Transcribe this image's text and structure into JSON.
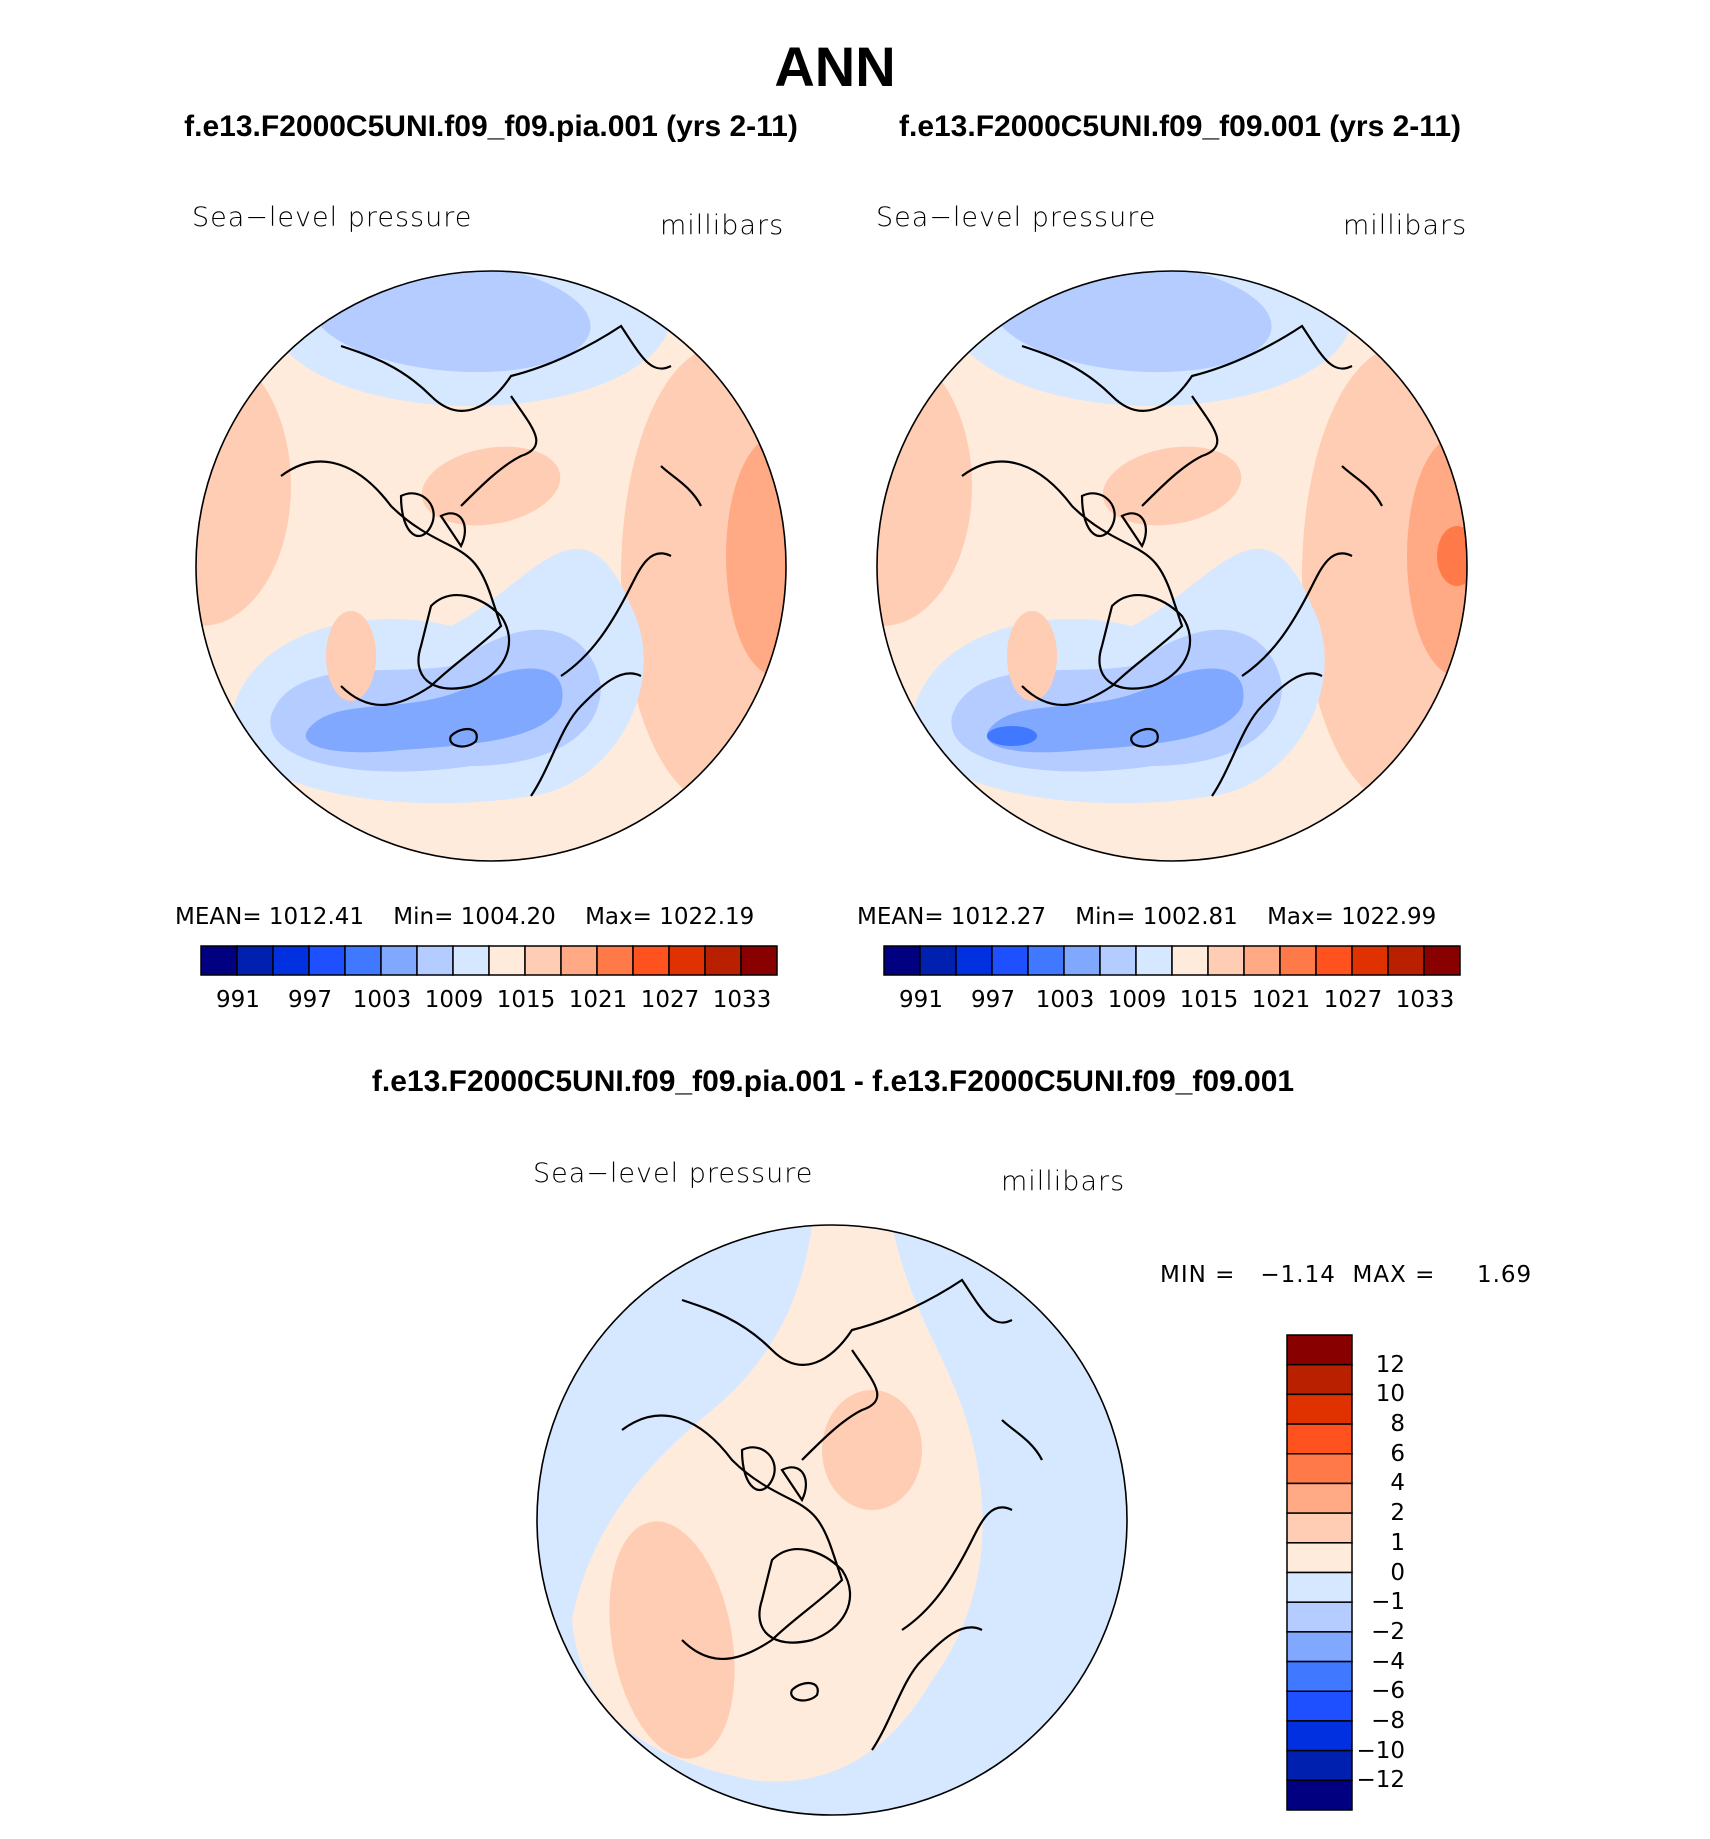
{
  "title": "ANN",
  "colors": [
    "#000080",
    "#0020b0",
    "#0030e0",
    "#1e50ff",
    "#4078ff",
    "#80a8ff",
    "#b4ccff",
    "#d6e8ff",
    "#ffebdb",
    "#ffccb4",
    "#ffaa84",
    "#ff7a48",
    "#ff521e",
    "#e03200",
    "#b82000",
    "#880000"
  ],
  "chart_data": [
    {
      "type": "heatmap",
      "subtitle": "f.e13.F2000C5UNI.f09_f09.pia.001 (yrs 2-11)",
      "variable": "Sea−level pressure",
      "units": "millibars",
      "stats": {
        "mean_label": "MEAN=",
        "mean": "1012.41",
        "min_label": "Min=",
        "min": "1004.20",
        "max_label": "Max=",
        "max": "1022.19"
      },
      "levels": [
        "991",
        "997",
        "1003",
        "1009",
        "1015",
        "1021",
        "1027",
        "1033"
      ],
      "projection": "north polar stereographic"
    },
    {
      "type": "heatmap",
      "subtitle": "f.e13.F2000C5UNI.f09_f09.001 (yrs 2-11)",
      "variable": "Sea−level pressure",
      "units": "millibars",
      "stats": {
        "mean_label": "MEAN=",
        "mean": "1012.27",
        "min_label": "Min=",
        "min": "1002.81",
        "max_label": "Max=",
        "max": "1022.99"
      },
      "levels": [
        "991",
        "997",
        "1003",
        "1009",
        "1015",
        "1021",
        "1027",
        "1033"
      ],
      "projection": "north polar stereographic"
    },
    {
      "type": "heatmap",
      "subtitle": "f.e13.F2000C5UNI.f09_f09.pia.001 - f.e13.F2000C5UNI.f09_f09.001",
      "variable": "Sea−level pressure",
      "units": "millibars",
      "stats": {
        "min_label": "MIN =",
        "min": "−1.14",
        "max_label": "MAX =",
        "max": "1.69"
      },
      "levels": [
        "12",
        "10",
        "8",
        "6",
        "4",
        "2",
        "1",
        "0",
        "−1",
        "−2",
        "−4",
        "−6",
        "−8",
        "−10",
        "−12"
      ],
      "projection": "north polar stereographic"
    }
  ]
}
